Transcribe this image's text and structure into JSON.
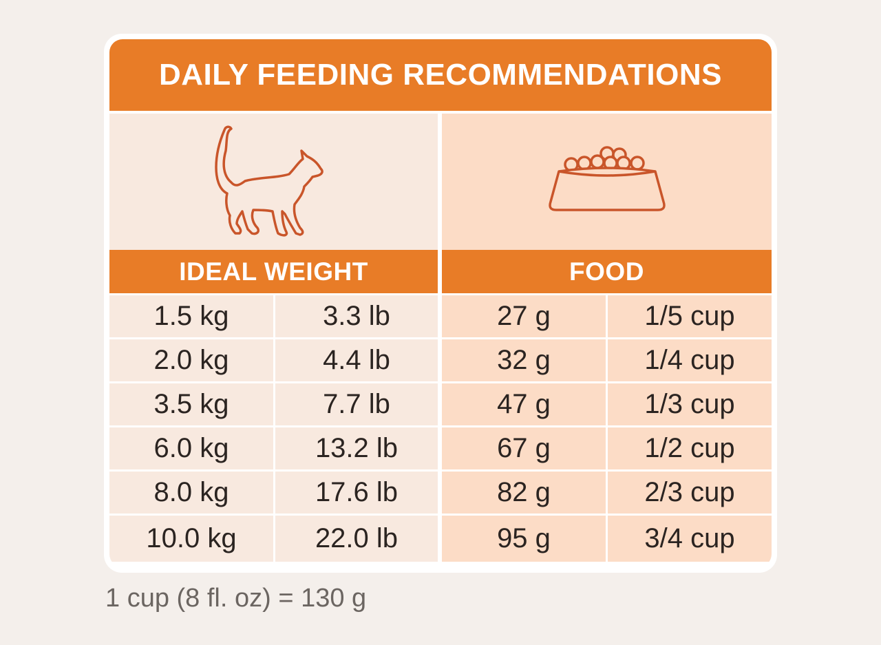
{
  "title": "DAILY FEEDING RECOMMENDATIONS",
  "headers": {
    "weight": "IDEAL WEIGHT",
    "food": "FOOD"
  },
  "icons": {
    "left": "cat-icon",
    "right": "food-bowl-icon"
  },
  "rows": [
    {
      "kg": "1.5 kg",
      "lb": "3.3 lb",
      "grams": "27 g",
      "cups": "1/5 cup"
    },
    {
      "kg": "2.0 kg",
      "lb": "4.4 lb",
      "grams": "32 g",
      "cups": "1/4 cup"
    },
    {
      "kg": "3.5 kg",
      "lb": "7.7 lb",
      "grams": "47 g",
      "cups": "1/3 cup"
    },
    {
      "kg": "6.0 kg",
      "lb": "13.2 lb",
      "grams": "67 g",
      "cups": "1/2 cup"
    },
    {
      "kg": "8.0 kg",
      "lb": "17.6 lb",
      "grams": "82 g",
      "cups": "2/3 cup"
    },
    {
      "kg": "10.0 kg",
      "lb": "22.0 lb",
      "grams": "95 g",
      "cups": "3/4 cup"
    }
  ],
  "footnote": "1 cup (8 fl. oz)  = 130 g",
  "colors": {
    "accent": "#e87c27",
    "left_fill": "#f8e9df",
    "right_fill": "#fcdcc6",
    "icon_stroke": "#c9552a",
    "background": "#f4efeb"
  }
}
